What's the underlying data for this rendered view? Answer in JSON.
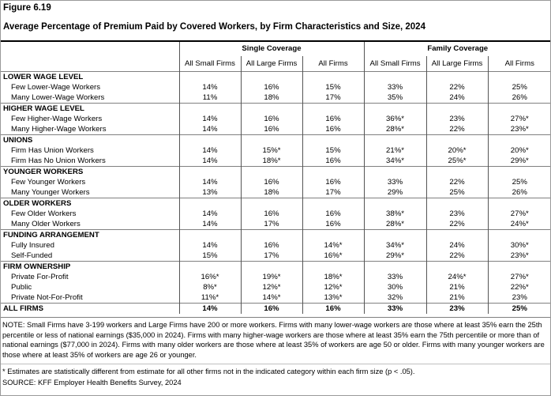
{
  "figure_label": "Figure 6.19",
  "title": "Average Percentage of Premium Paid by Covered Workers, by Firm Characteristics and Size, 2024",
  "column_groups": [
    "Single Coverage",
    "Family Coverage"
  ],
  "columns": [
    "All Small Firms",
    "All Large Firms",
    "All Firms",
    "All Small Firms",
    "All Large Firms",
    "All Firms"
  ],
  "groups": [
    {
      "label": "LOWER WAGE LEVEL",
      "rows": [
        {
          "label": "Few Lower-Wage Workers",
          "values": [
            "14%",
            "16%",
            "15%",
            "33%",
            "22%",
            "25%"
          ]
        },
        {
          "label": "Many Lower-Wage Workers",
          "values": [
            "11%",
            "18%",
            "17%",
            "35%",
            "24%",
            "26%"
          ]
        }
      ]
    },
    {
      "label": "HIGHER WAGE LEVEL",
      "rows": [
        {
          "label": "Few Higher-Wage Workers",
          "values": [
            "14%",
            "16%",
            "16%",
            "36%*",
            "23%",
            "27%*"
          ]
        },
        {
          "label": "Many Higher-Wage Workers",
          "values": [
            "14%",
            "16%",
            "16%",
            "28%*",
            "22%",
            "23%*"
          ]
        }
      ]
    },
    {
      "label": "UNIONS",
      "rows": [
        {
          "label": "Firm Has Union Workers",
          "values": [
            "14%",
            "15%*",
            "15%",
            "21%*",
            "20%*",
            "20%*"
          ]
        },
        {
          "label": "Firm Has No Union Workers",
          "values": [
            "14%",
            "18%*",
            "16%",
            "34%*",
            "25%*",
            "29%*"
          ]
        }
      ]
    },
    {
      "label": "YOUNGER WORKERS",
      "rows": [
        {
          "label": "Few Younger Workers",
          "values": [
            "14%",
            "16%",
            "16%",
            "33%",
            "22%",
            "25%"
          ]
        },
        {
          "label": "Many Younger Workers",
          "values": [
            "13%",
            "18%",
            "17%",
            "29%",
            "25%",
            "26%"
          ]
        }
      ]
    },
    {
      "label": "OLDER WORKERS",
      "rows": [
        {
          "label": "Few Older Workers",
          "values": [
            "14%",
            "16%",
            "16%",
            "38%*",
            "23%",
            "27%*"
          ]
        },
        {
          "label": "Many Older Workers",
          "values": [
            "14%",
            "17%",
            "16%",
            "28%*",
            "22%",
            "24%*"
          ]
        }
      ]
    },
    {
      "label": "FUNDING ARRANGEMENT",
      "rows": [
        {
          "label": "Fully Insured",
          "values": [
            "14%",
            "16%",
            "14%*",
            "34%*",
            "24%",
            "30%*"
          ]
        },
        {
          "label": "Self-Funded",
          "values": [
            "15%",
            "17%",
            "16%*",
            "29%*",
            "22%",
            "23%*"
          ]
        }
      ]
    },
    {
      "label": "FIRM OWNERSHIP",
      "rows": [
        {
          "label": "Private For-Profit",
          "values": [
            "16%*",
            "19%*",
            "18%*",
            "33%",
            "24%*",
            "27%*"
          ]
        },
        {
          "label": "Public",
          "values": [
            "8%*",
            "12%*",
            "12%*",
            "30%",
            "21%",
            "22%*"
          ]
        },
        {
          "label": "Private Not-For-Profit",
          "values": [
            "11%*",
            "14%*",
            "13%*",
            "32%",
            "21%",
            "23%"
          ]
        }
      ]
    }
  ],
  "all_firms": {
    "label": "ALL FIRMS",
    "values": [
      "14%",
      "16%",
      "16%",
      "33%",
      "23%",
      "25%"
    ]
  },
  "note": "NOTE: Small Firms have 3-199 workers and Large Firms have 200 or more workers. Firms with many lower-wage workers are those where at least 35% earn the 25th percentile or less of national earnings ($35,000 in 2024). Firms with many higher-wage workers are those where at least 35% earn the 75th percentile or more than of national earnings ($77,000 in 2024). Firms with many older workers are those where at least 35% of workers are age 50 or older. Firms with many younger workers are those where at least 35% of workers are age 26 or younger.",
  "footnote": "* Estimates are statistically different from estimate for all other firms not in the indicated category within each firm size (p < .05).",
  "source": "SOURCE: KFF Employer Health Benefits Survey, 2024"
}
